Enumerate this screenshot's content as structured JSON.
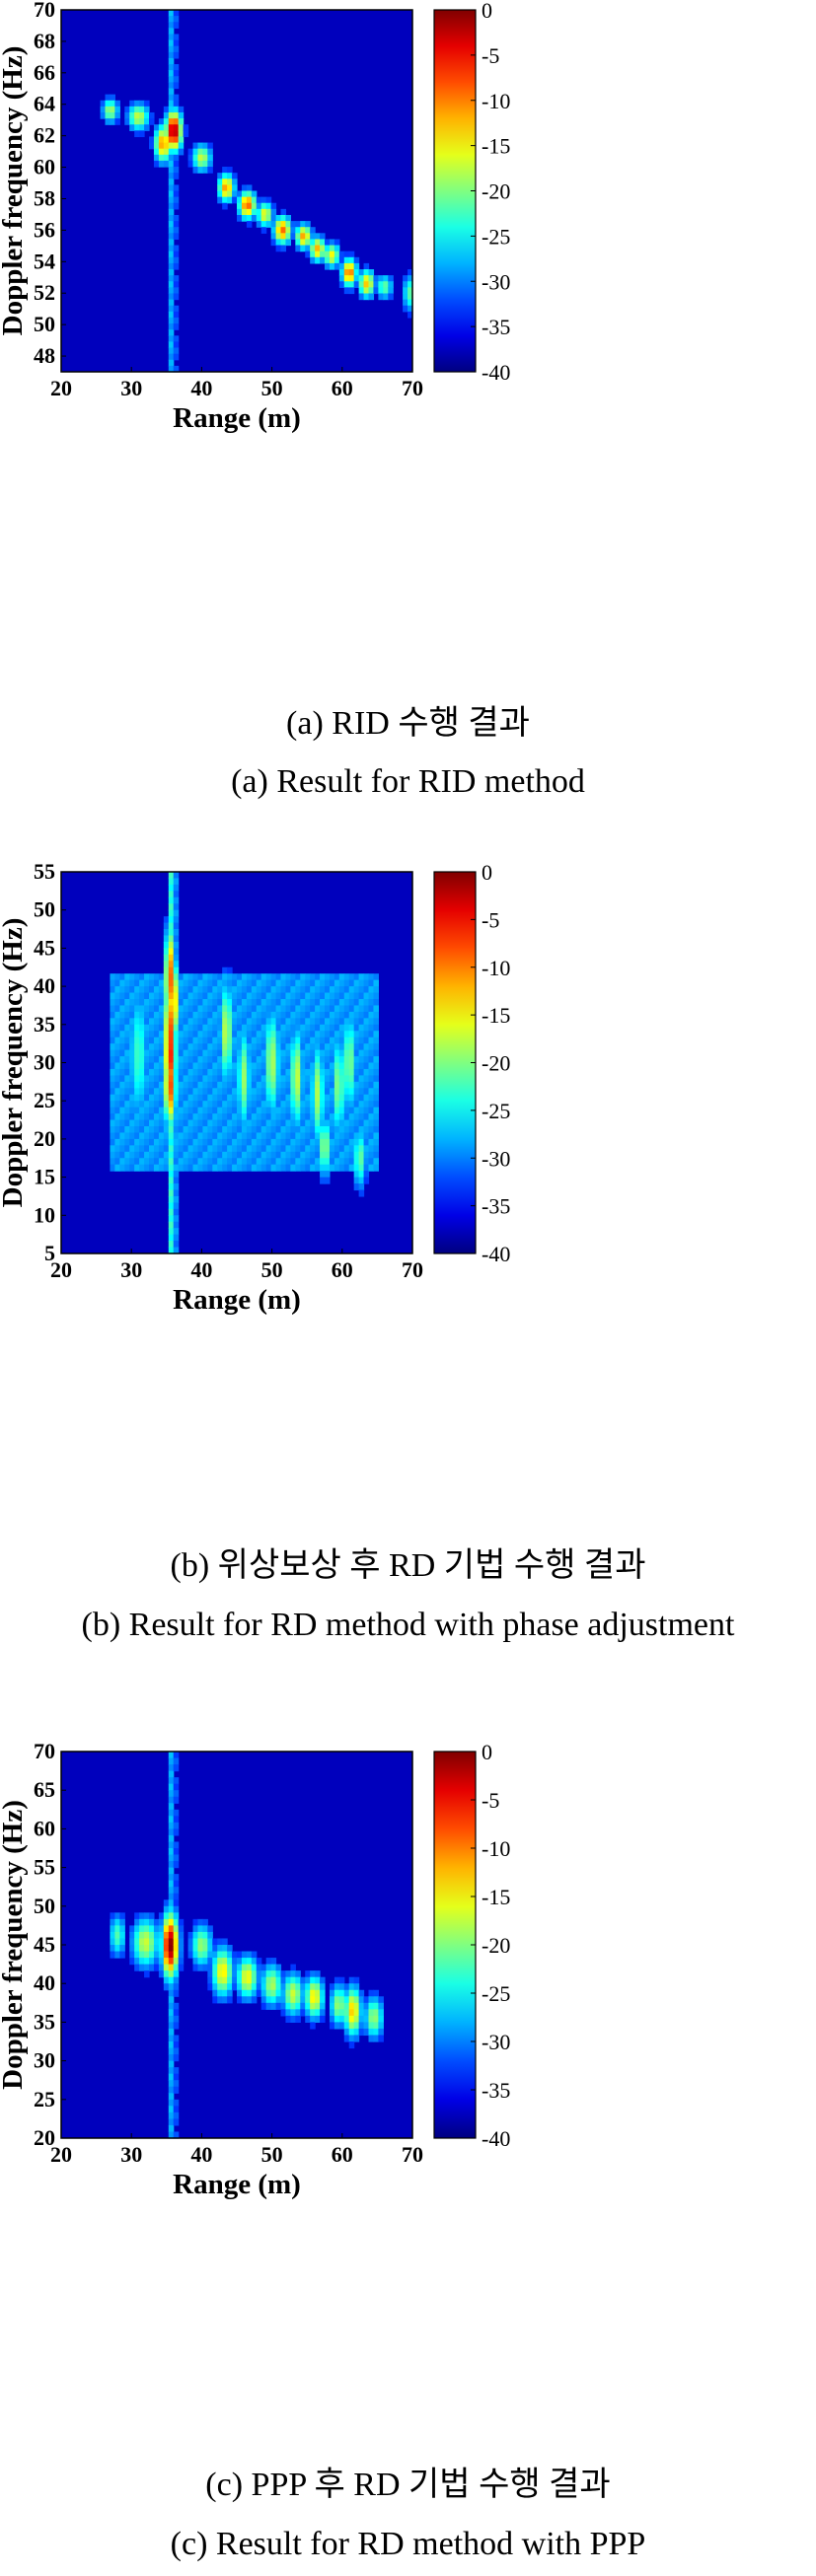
{
  "chart_data": [
    {
      "type": "heatmap",
      "id": "a",
      "xlabel": "Range (m)",
      "ylabel": "Doppler frequency (Hz)",
      "xlim": [
        20,
        70
      ],
      "ylim": [
        47,
        70
      ],
      "xticks": [
        20,
        30,
        40,
        50,
        60,
        70
      ],
      "yticks": [
        48,
        50,
        52,
        54,
        56,
        58,
        60,
        62,
        64,
        66,
        68,
        70
      ],
      "colorbar": {
        "range": [
          -40,
          0
        ],
        "ticks": [
          0,
          -5,
          -10,
          -15,
          -20,
          -25,
          -30,
          -35,
          -40
        ]
      },
      "caption_ko": "(a) RID 수행 결과",
      "caption_en": "(a) Result for RID method"
    },
    {
      "type": "heatmap",
      "id": "b",
      "xlabel": "Range (m)",
      "ylabel": "Doppler frequency (Hz)",
      "xlim": [
        20,
        70
      ],
      "ylim": [
        5,
        55
      ],
      "xticks": [
        20,
        30,
        40,
        50,
        60,
        70
      ],
      "yticks": [
        5,
        10,
        15,
        20,
        25,
        30,
        35,
        40,
        45,
        50,
        55
      ],
      "colorbar": {
        "range": [
          -40,
          0
        ],
        "ticks": [
          0,
          -5,
          -10,
          -15,
          -20,
          -25,
          -30,
          -35,
          -40
        ]
      },
      "caption_ko": "(b) 위상보상 후 RD 기법 수행 결과",
      "caption_en": "(b) Result for RD method with phase adjustment"
    },
    {
      "type": "heatmap",
      "id": "c",
      "xlabel": "Range (m)",
      "ylabel": "Doppler frequency (Hz)",
      "xlim": [
        20,
        70
      ],
      "ylim": [
        20,
        70
      ],
      "xticks": [
        20,
        30,
        40,
        50,
        60,
        70
      ],
      "yticks": [
        20,
        25,
        30,
        35,
        40,
        45,
        50,
        55,
        60,
        65,
        70
      ],
      "colorbar": {
        "range": [
          -40,
          0
        ],
        "ticks": [
          0,
          -5,
          -10,
          -15,
          -20,
          -25,
          -30,
          -35,
          -40
        ]
      },
      "caption_ko": "(c) PPP 후 RD 기법 수행 결과",
      "caption_en": "(c) Result for RD method with PPP"
    }
  ]
}
